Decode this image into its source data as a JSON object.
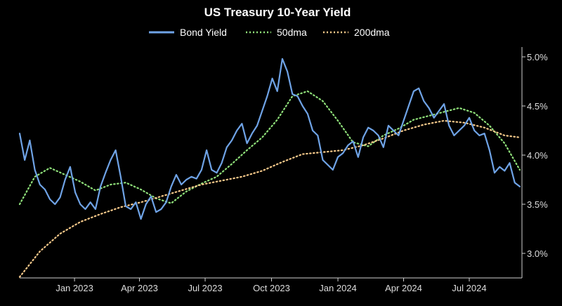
{
  "chart_data": {
    "type": "line",
    "title": "US Treasury 10-Year Yield",
    "xlabel": "",
    "ylabel": "",
    "x_tick_labels": [
      "Jan 2023",
      "Apr 2023",
      "Jul 2023",
      "Oct 2023",
      "Jan 2024",
      "Apr 2024",
      "Jul 2024"
    ],
    "y_tick_labels": [
      "3.0%",
      "3.5%",
      "4.0%",
      "4.5%",
      "5.0%"
    ],
    "y_ticks": [
      3.0,
      3.5,
      4.0,
      4.5,
      5.0
    ],
    "ylim": [
      2.75,
      5.1
    ],
    "xlim": [
      "2022-10-17",
      "2024-09-12"
    ],
    "grid": false,
    "legend_position": "top-center",
    "series": [
      {
        "name": "Bond Yield",
        "color": "#6fa3e6",
        "style": "solid",
        "x": [
          "2022-10-17",
          "2022-10-24",
          "2022-10-31",
          "2022-11-07",
          "2022-11-14",
          "2022-11-21",
          "2022-11-28",
          "2022-12-05",
          "2022-12-12",
          "2022-12-19",
          "2022-12-26",
          "2023-01-02",
          "2023-01-09",
          "2023-01-16",
          "2023-01-23",
          "2023-01-30",
          "2023-02-06",
          "2023-02-13",
          "2023-02-20",
          "2023-02-27",
          "2023-03-06",
          "2023-03-13",
          "2023-03-20",
          "2023-03-27",
          "2023-04-03",
          "2023-04-10",
          "2023-04-17",
          "2023-04-24",
          "2023-05-01",
          "2023-05-08",
          "2023-05-15",
          "2023-05-22",
          "2023-05-29",
          "2023-06-05",
          "2023-06-12",
          "2023-06-19",
          "2023-06-26",
          "2023-07-03",
          "2023-07-10",
          "2023-07-17",
          "2023-07-24",
          "2023-07-31",
          "2023-08-07",
          "2023-08-14",
          "2023-08-21",
          "2023-08-28",
          "2023-09-04",
          "2023-09-11",
          "2023-09-18",
          "2023-09-25",
          "2023-10-02",
          "2023-10-09",
          "2023-10-16",
          "2023-10-23",
          "2023-10-30",
          "2023-11-06",
          "2023-11-13",
          "2023-11-20",
          "2023-11-27",
          "2023-12-04",
          "2023-12-11",
          "2023-12-18",
          "2023-12-25",
          "2024-01-01",
          "2024-01-08",
          "2024-01-15",
          "2024-01-22",
          "2024-01-29",
          "2024-02-05",
          "2024-02-12",
          "2024-02-19",
          "2024-02-26",
          "2024-03-04",
          "2024-03-11",
          "2024-03-18",
          "2024-03-25",
          "2024-04-01",
          "2024-04-08",
          "2024-04-15",
          "2024-04-22",
          "2024-04-29",
          "2024-05-06",
          "2024-05-13",
          "2024-05-20",
          "2024-05-27",
          "2024-06-03",
          "2024-06-10",
          "2024-06-17",
          "2024-06-24",
          "2024-07-01",
          "2024-07-08",
          "2024-07-15",
          "2024-07-22",
          "2024-07-29",
          "2024-08-05",
          "2024-08-12",
          "2024-08-19",
          "2024-08-26",
          "2024-09-02",
          "2024-09-09"
        ],
        "values": [
          4.22,
          3.95,
          4.15,
          3.85,
          3.7,
          3.65,
          3.55,
          3.5,
          3.57,
          3.75,
          3.88,
          3.62,
          3.5,
          3.45,
          3.52,
          3.45,
          3.68,
          3.82,
          3.95,
          4.05,
          3.78,
          3.48,
          3.45,
          3.52,
          3.35,
          3.5,
          3.58,
          3.42,
          3.45,
          3.52,
          3.68,
          3.8,
          3.7,
          3.75,
          3.78,
          3.76,
          3.85,
          4.05,
          3.85,
          3.82,
          3.92,
          4.08,
          4.15,
          4.25,
          4.32,
          4.12,
          4.22,
          4.3,
          4.45,
          4.6,
          4.78,
          4.65,
          4.98,
          4.85,
          4.62,
          4.6,
          4.5,
          4.42,
          4.25,
          4.2,
          3.95,
          3.9,
          3.85,
          3.98,
          4.02,
          4.1,
          4.14,
          3.98,
          4.18,
          4.28,
          4.25,
          4.2,
          4.08,
          4.3,
          4.25,
          4.2,
          4.35,
          4.5,
          4.65,
          4.68,
          4.55,
          4.48,
          4.38,
          4.45,
          4.52,
          4.3,
          4.2,
          4.25,
          4.3,
          4.38,
          4.25,
          4.2,
          4.22,
          4.05,
          3.82,
          3.88,
          3.84,
          3.92,
          3.72,
          3.68
        ]
      },
      {
        "name": "50dma",
        "color": "#8fe07a",
        "style": "dotted",
        "x": [
          "2022-10-17",
          "2022-11-07",
          "2022-11-28",
          "2022-12-19",
          "2023-01-09",
          "2023-01-30",
          "2023-02-20",
          "2023-03-13",
          "2023-04-03",
          "2023-04-24",
          "2023-05-15",
          "2023-06-05",
          "2023-06-26",
          "2023-07-17",
          "2023-08-07",
          "2023-08-28",
          "2023-09-18",
          "2023-10-09",
          "2023-10-30",
          "2023-11-20",
          "2023-12-11",
          "2024-01-01",
          "2024-01-22",
          "2024-02-12",
          "2024-03-04",
          "2024-03-25",
          "2024-04-15",
          "2024-05-06",
          "2024-05-27",
          "2024-06-17",
          "2024-07-08",
          "2024-07-29",
          "2024-08-19",
          "2024-09-09"
        ],
        "values": [
          3.5,
          3.78,
          3.87,
          3.8,
          3.73,
          3.64,
          3.7,
          3.72,
          3.65,
          3.56,
          3.51,
          3.63,
          3.71,
          3.78,
          3.91,
          4.05,
          4.18,
          4.36,
          4.6,
          4.65,
          4.55,
          4.35,
          4.13,
          4.09,
          4.2,
          4.27,
          4.36,
          4.4,
          4.44,
          4.48,
          4.43,
          4.3,
          4.12,
          3.85
        ]
      },
      {
        "name": "200dma",
        "color": "#f5c98a",
        "style": "dotted",
        "x": [
          "2022-10-17",
          "2022-11-14",
          "2022-12-12",
          "2023-01-09",
          "2023-02-06",
          "2023-03-06",
          "2023-04-03",
          "2023-05-01",
          "2023-05-29",
          "2023-06-26",
          "2023-07-24",
          "2023-08-21",
          "2023-09-18",
          "2023-10-16",
          "2023-11-13",
          "2023-12-11",
          "2024-01-08",
          "2024-02-05",
          "2024-03-04",
          "2024-04-01",
          "2024-04-29",
          "2024-05-27",
          "2024-06-24",
          "2024-07-22",
          "2024-08-19",
          "2024-09-09"
        ],
        "values": [
          2.76,
          3.02,
          3.2,
          3.32,
          3.4,
          3.47,
          3.52,
          3.58,
          3.64,
          3.7,
          3.74,
          3.78,
          3.84,
          3.93,
          4.01,
          4.03,
          4.05,
          4.1,
          4.17,
          4.25,
          4.31,
          4.35,
          4.33,
          4.28,
          4.2,
          4.18
        ]
      }
    ]
  }
}
